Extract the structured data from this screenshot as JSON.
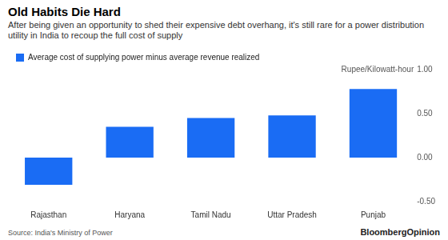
{
  "chart_data": {
    "type": "bar",
    "title": "Old Habits Die Hard",
    "subtitle": "After being given an opportunity to shed their expensive debt overhang, it's still rare for a power distribution utility in India to recoup the full cost of supply",
    "categories": [
      "Rajasthan",
      "Haryana",
      "Tamil Nadu",
      "Uttar Pradesh",
      "Punjab"
    ],
    "series": [
      {
        "name": "Average cost of supplying power minus average revenue realized",
        "color": "#1a6cf4",
        "values": [
          -0.31,
          0.35,
          0.45,
          0.48,
          0.78
        ]
      }
    ],
    "y_label": "Rupee/Kilowatt-hour",
    "ylim": [
      -0.5,
      1
    ],
    "yticks": [
      {
        "value": -0.5,
        "label": "-0.50"
      },
      {
        "value": 0,
        "label": "0.00"
      },
      {
        "value": 0.5,
        "label": "0.50"
      },
      {
        "value": 1,
        "label": "1.00"
      }
    ],
    "grid": false,
    "legend": "top-left",
    "source": "Source: India's Ministry of Power",
    "branding": "BloombergOpinion"
  }
}
